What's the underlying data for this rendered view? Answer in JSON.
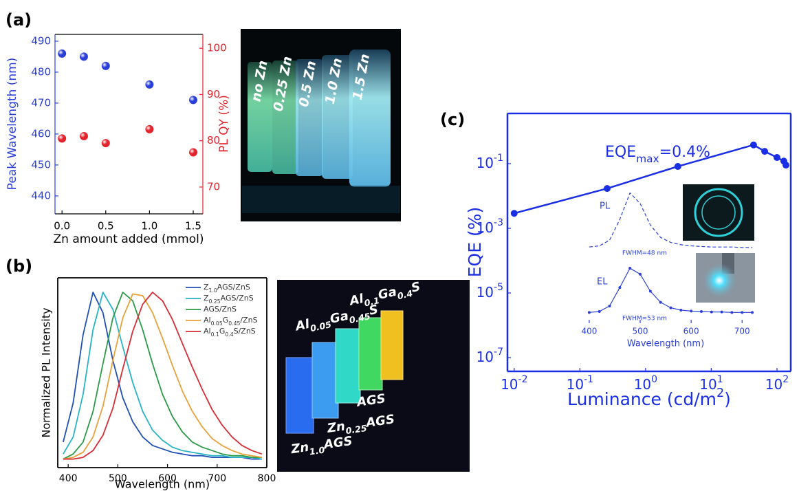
{
  "chart_data": [
    {
      "type": "scatter",
      "panel_label": "(a)",
      "xlabel": "Zn amount added (mmol)",
      "ylabel": "Peak Wavelength (nm)",
      "y2label": "PL QY (%)",
      "x": [
        0,
        0.25,
        0.5,
        1,
        1.5
      ],
      "series": [
        {
          "color": "#2a3fd8",
          "values": [
            486,
            485,
            482,
            476,
            471
          ]
        },
        {
          "color": "#e3232c",
          "axis": "y2",
          "values": [
            80.5,
            81,
            79.5,
            82.5,
            77.5
          ]
        }
      ],
      "xlim": [
        -0.08,
        1.61
      ],
      "xticks": [
        {
          "value": 0,
          "label": "0.0"
        },
        {
          "value": 0.5,
          "label": "0.5"
        },
        {
          "value": 1,
          "label": "1.0"
        },
        {
          "value": 1.5,
          "label": "1.5"
        }
      ],
      "ylim": [
        434.2,
        492.2
      ],
      "yticks": [
        440,
        450,
        460,
        470,
        480,
        490
      ],
      "y2lim": [
        64.2,
        103
      ],
      "y2ticks": [
        70,
        80,
        90,
        100
      ]
    },
    {
      "type": "line",
      "panel_label": "(b)",
      "xlabel": "Wavelength (nm)",
      "ylabel": "Normalized PL Intensity",
      "x": [
        390,
        410,
        430,
        450,
        470,
        490,
        510,
        530,
        550,
        570,
        590,
        610,
        630,
        650,
        670,
        690,
        710,
        730,
        750,
        770,
        790
      ],
      "series": [
        {
          "name": [
            {
              "text": "Z"
            },
            {
              "text": "1.0",
              "sub": true
            },
            {
              "text": "AGS/ZnS"
            }
          ],
          "color": "#1f4fb4",
          "values": [
            0.12,
            0.35,
            0.75,
            1.0,
            0.88,
            0.6,
            0.38,
            0.24,
            0.15,
            0.1,
            0.08,
            0.06,
            0.05,
            0.04,
            0.04,
            0.03,
            0.03,
            0.03,
            0.03,
            0.02,
            0.02
          ]
        },
        {
          "name": [
            {
              "text": "Z"
            },
            {
              "text": "0.25",
              "sub": true
            },
            {
              "text": "AGS/ZnS"
            }
          ],
          "color": "#27b3c6",
          "values": [
            0.05,
            0.15,
            0.4,
            0.78,
            1.0,
            0.9,
            0.68,
            0.47,
            0.3,
            0.19,
            0.13,
            0.09,
            0.07,
            0.06,
            0.05,
            0.04,
            0.04,
            0.03,
            0.03,
            0.03,
            0.02
          ]
        },
        {
          "name": [
            {
              "text": "AGS/ZnS"
            }
          ],
          "color": "#2a9a46",
          "values": [
            0.02,
            0.05,
            0.12,
            0.3,
            0.58,
            0.85,
            1.0,
            0.95,
            0.78,
            0.58,
            0.4,
            0.27,
            0.18,
            0.12,
            0.09,
            0.07,
            0.05,
            0.04,
            0.04,
            0.03,
            0.03
          ]
        },
        {
          "name": [
            {
              "text": "Al"
            },
            {
              "text": "0.05",
              "sub": true
            },
            {
              "text": "G"
            },
            {
              "text": "0.45",
              "sub": true
            },
            {
              "text": "/ZnS"
            }
          ],
          "color": "#e8a03a",
          "values": [
            0.02,
            0.03,
            0.06,
            0.15,
            0.33,
            0.6,
            0.85,
            0.99,
            0.98,
            0.88,
            0.73,
            0.57,
            0.42,
            0.3,
            0.21,
            0.14,
            0.1,
            0.07,
            0.05,
            0.04,
            0.03
          ]
        },
        {
          "name": [
            {
              "text": "Al"
            },
            {
              "text": "0.1",
              "sub": true
            },
            {
              "text": "G"
            },
            {
              "text": "0.4",
              "sub": true
            },
            {
              "text": "S/ZnS"
            }
          ],
          "color": "#d62c33",
          "values": [
            0.02,
            0.02,
            0.03,
            0.07,
            0.16,
            0.32,
            0.55,
            0.77,
            0.93,
            1.0,
            0.95,
            0.84,
            0.7,
            0.56,
            0.43,
            0.31,
            0.22,
            0.15,
            0.1,
            0.07,
            0.05
          ]
        }
      ],
      "xlim": [
        379,
        800
      ],
      "xticks": [
        400,
        500,
        600,
        700,
        800
      ],
      "ylim": [
        -0.03,
        1.085
      ],
      "legend": "upper right"
    },
    {
      "type": "line",
      "panel_label": "(c)",
      "xlabel": [
        {
          "text": "Luminance (cd/m"
        },
        {
          "text": "2",
          "sup": true
        },
        {
          "text": ")"
        }
      ],
      "ylabel": "EQE (%)",
      "x": [
        0.01,
        0.26,
        3.1,
        44,
        65,
        100,
        127,
        137
      ],
      "values": [
        0.0029,
        0.017,
        0.082,
        0.38,
        0.24,
        0.155,
        0.12,
        0.09
      ],
      "color": "#1a2ee6",
      "markers": true,
      "log_x": true,
      "log_y": true,
      "xlim": [
        0.0079,
        162
      ],
      "ylim": [
        3.75e-08,
        3.57
      ],
      "xticks": [
        {
          "value": 0.01,
          "label": [
            {
              "text": "10"
            },
            {
              "text": "-2",
              "sup": true
            }
          ]
        },
        {
          "value": 0.1,
          "label": [
            {
              "text": "10"
            },
            {
              "text": "-1",
              "sup": true
            }
          ]
        },
        {
          "value": 1,
          "label": [
            {
              "text": "10"
            },
            {
              "text": "0",
              "sup": true
            }
          ]
        },
        {
          "value": 10,
          "label": [
            {
              "text": "10"
            },
            {
              "text": "1",
              "sup": true
            }
          ]
        },
        {
          "value": 100,
          "label": [
            {
              "text": "10"
            },
            {
              "text": "2",
              "sup": true
            }
          ]
        }
      ],
      "yticks": [
        {
          "value": 1e-07,
          "label": [
            {
              "text": "10"
            },
            {
              "text": "-7",
              "sup": true
            }
          ]
        },
        {
          "value": 1e-05,
          "label": [
            {
              "text": "10"
            },
            {
              "text": "-5",
              "sup": true
            }
          ]
        },
        {
          "value": 0.001,
          "label": [
            {
              "text": "10"
            },
            {
              "text": "-3",
              "sup": true
            }
          ]
        },
        {
          "value": 0.1,
          "label": [
            {
              "text": "10"
            },
            {
              "text": "-1",
              "sup": true
            }
          ]
        }
      ],
      "annotations": [
        [
          {
            "text": "EQE"
          },
          {
            "text": "max",
            "sub": true
          },
          {
            "text": "=0.4%"
          }
        ]
      ]
    },
    {
      "type": "line",
      "x": [
        400,
        420,
        440,
        460,
        480,
        500,
        520,
        540,
        560,
        580,
        600,
        620,
        640,
        660,
        680,
        700,
        720
      ],
      "values": [
        0.01,
        0.03,
        0.13,
        0.5,
        0.97,
        0.78,
        0.4,
        0.18,
        0.09,
        0.05,
        0.03,
        0.02,
        0.01,
        0.01,
        0.01,
        0,
        0
      ],
      "color": "#2a3fd8",
      "dashed": true,
      "xlim": [
        388,
        728
      ],
      "ylim": [
        0,
        1
      ],
      "annotations": [
        "PL",
        "FWHM=48 nm"
      ]
    },
    {
      "type": "line",
      "x": [
        400,
        420,
        440,
        460,
        480,
        500,
        520,
        540,
        560,
        580,
        600,
        620,
        640,
        660,
        680,
        700,
        720
      ],
      "values": [
        0.01,
        0.03,
        0.15,
        0.55,
        0.97,
        0.84,
        0.47,
        0.23,
        0.11,
        0.06,
        0.04,
        0.03,
        0.02,
        0.02,
        0.01,
        0.01,
        0.01
      ],
      "color": "#2a3fd8",
      "markers": true,
      "xlim": [
        388,
        728
      ],
      "ylim": [
        0,
        1
      ],
      "xticks": [
        400,
        500,
        600,
        700
      ],
      "xlabel": "Wavelength (nm)",
      "annotations": [
        "EL",
        "FWHM=53 nm"
      ]
    }
  ],
  "photos": [
    {
      "labels": [
        "no Zn",
        "0.25 Zn",
        "0.5 Zn",
        "1.0 Zn",
        "1.5 Zn"
      ]
    },
    {
      "labels": [
        [
          {
            "text": "Al"
          },
          {
            "text": "0.1",
            "sub": true
          },
          {
            "text": "Ga"
          },
          {
            "text": "0.4",
            "sub": true
          },
          {
            "text": "S"
          }
        ],
        [
          {
            "text": "Al"
          },
          {
            "text": "0.05",
            "sub": true
          },
          {
            "text": "Ga"
          },
          {
            "text": "0.45",
            "sub": true
          },
          {
            "text": "S"
          }
        ],
        [
          {
            "text": "AGS"
          }
        ],
        [
          {
            "text": "Zn"
          },
          {
            "text": "0.25",
            "sub": true
          },
          {
            "text": "AGS"
          }
        ],
        [
          {
            "text": "Zn"
          },
          {
            "text": "1.0",
            "sub": true
          },
          {
            "text": "AGS"
          }
        ]
      ]
    }
  ]
}
